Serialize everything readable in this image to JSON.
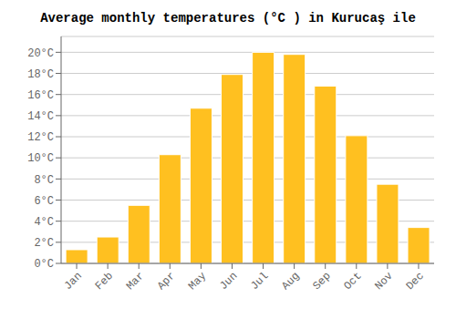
{
  "chart_data": {
    "type": "bar",
    "title": "Average monthly temperatures (°C ) in Kurucaş ile",
    "categories": [
      "Jan",
      "Feb",
      "Mar",
      "Apr",
      "May",
      "Jun",
      "Jul",
      "Aug",
      "Sep",
      "Oct",
      "Nov",
      "Dec"
    ],
    "values": [
      1.3,
      2.5,
      5.5,
      10.3,
      14.7,
      17.9,
      20.0,
      19.8,
      16.8,
      12.1,
      7.5,
      3.4
    ],
    "color": "#FFC020",
    "ylim": [
      0,
      21.5
    ],
    "yticks": [
      {
        "value": 0,
        "label": "0°C"
      },
      {
        "value": 2,
        "label": "2°C"
      },
      {
        "value": 4,
        "label": "4°C"
      },
      {
        "value": 6,
        "label": "6°C"
      },
      {
        "value": 8,
        "label": "8°C"
      },
      {
        "value": 10,
        "label": "10°C"
      },
      {
        "value": 12,
        "label": "12°C"
      },
      {
        "value": 14,
        "label": "14°C"
      },
      {
        "value": 16,
        "label": "16°C"
      },
      {
        "value": 18,
        "label": "18°C"
      },
      {
        "value": 20,
        "label": "20°C"
      }
    ],
    "grid": true
  }
}
